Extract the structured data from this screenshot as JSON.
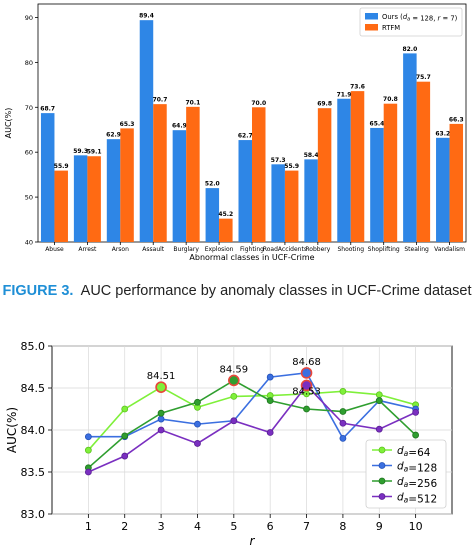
{
  "chart_data": [
    {
      "type": "bar",
      "xlabel": "Abnormal classes in UCF-Crime",
      "ylabel": "AUC(%)",
      "ylim": [
        40,
        93
      ],
      "yticks": [
        40,
        50,
        60,
        70,
        80,
        90
      ],
      "grid": false,
      "legend_position": "top-right",
      "categories": [
        "Abuse",
        "Arrest",
        "Arson",
        "Assault",
        "Burglary",
        "Explosion",
        "Fighting",
        "RoadAccidents",
        "Robbery",
        "Shooting",
        "Shoplifting",
        "Stealing",
        "Vandalism"
      ],
      "series": [
        {
          "name": "Ours (d_a = 128, r = 7)",
          "color": "#2e86e6",
          "values": [
            68.7,
            59.3,
            62.9,
            89.4,
            64.9,
            52.0,
            62.7,
            57.3,
            58.4,
            71.9,
            65.4,
            82.0,
            63.2
          ]
        },
        {
          "name": "RTFM",
          "color": "#ff6a13",
          "values": [
            55.9,
            59.1,
            65.3,
            70.7,
            70.1,
            45.2,
            70.0,
            55.9,
            69.8,
            73.6,
            70.8,
            75.7,
            66.3
          ]
        }
      ],
      "data_labels": {
        "series0": [
          "68.7",
          "59.3",
          "62.9",
          "89.4",
          "64.9",
          "52.0",
          "62.7",
          "57.3",
          "58.4",
          "71.9",
          "65.4",
          "82.0",
          "63.2"
        ],
        "series1": [
          "55.9",
          "59.1",
          "65.3",
          "70.7",
          "70.1",
          "45.2",
          "70.0",
          "55.9",
          "69.8",
          "73.6",
          "70.8",
          "75.7",
          "66.3"
        ]
      }
    },
    {
      "type": "line",
      "xlabel": "r",
      "ylabel": "AUC(%)",
      "ylim": [
        83.0,
        85.0
      ],
      "yticks": [
        "83.0",
        "83.5",
        "84.0",
        "84.5",
        "85.0"
      ],
      "x": [
        1,
        2,
        3,
        4,
        5,
        6,
        7,
        8,
        9,
        10
      ],
      "grid": true,
      "legend_position": "bottom-right",
      "series": [
        {
          "name": "d_a=64",
          "color": "#7ff03a",
          "edge": "#5cc21e",
          "values": [
            83.76,
            84.25,
            84.51,
            84.27,
            84.4,
            84.41,
            84.43,
            84.46,
            84.42,
            84.3
          ]
        },
        {
          "name": "d_a=128",
          "color": "#3b6fe0",
          "edge": "#2452b8",
          "values": [
            83.92,
            83.92,
            84.13,
            84.07,
            84.11,
            84.63,
            84.68,
            83.9,
            84.35,
            84.25
          ]
        },
        {
          "name": "d_a=256",
          "color": "#2f9e2f",
          "edge": "#1f761f",
          "values": [
            83.55,
            83.93,
            84.2,
            84.33,
            84.59,
            84.35,
            84.25,
            84.22,
            84.35,
            83.94
          ]
        },
        {
          "name": "d_a=512",
          "color": "#7a2fc0",
          "edge": "#5a1f94",
          "values": [
            83.5,
            83.69,
            84.0,
            83.84,
            84.11,
            83.97,
            84.53,
            84.08,
            84.01,
            84.21
          ]
        }
      ],
      "annotations": [
        {
          "text": "84.51",
          "x": 3,
          "y": 84.51
        },
        {
          "text": "84.59",
          "x": 5,
          "y": 84.59
        },
        {
          "text": "84.68",
          "x": 7,
          "y": 84.68
        },
        {
          "text": "84.53",
          "x": 7,
          "y": 84.53
        }
      ],
      "highlight_ring_color": "#e8463a"
    }
  ],
  "caption": {
    "label": "FIGURE 3.",
    "text": "AUC performance by anomaly classes in UCF-Crime dataset"
  }
}
